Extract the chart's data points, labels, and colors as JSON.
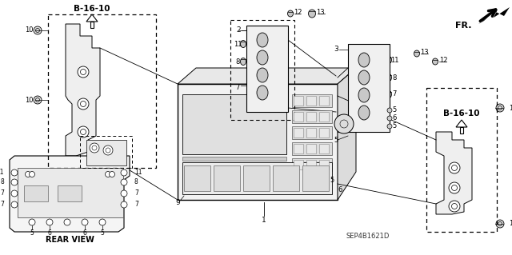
{
  "bg_color": "#ffffff",
  "fig_width": 6.4,
  "fig_height": 3.19,
  "dpi": 100,
  "diagram_code": "SEP4B1621D",
  "ref_label": "B-16-10",
  "fr_label": "FR.",
  "rear_view_label": "REAR VIEW"
}
